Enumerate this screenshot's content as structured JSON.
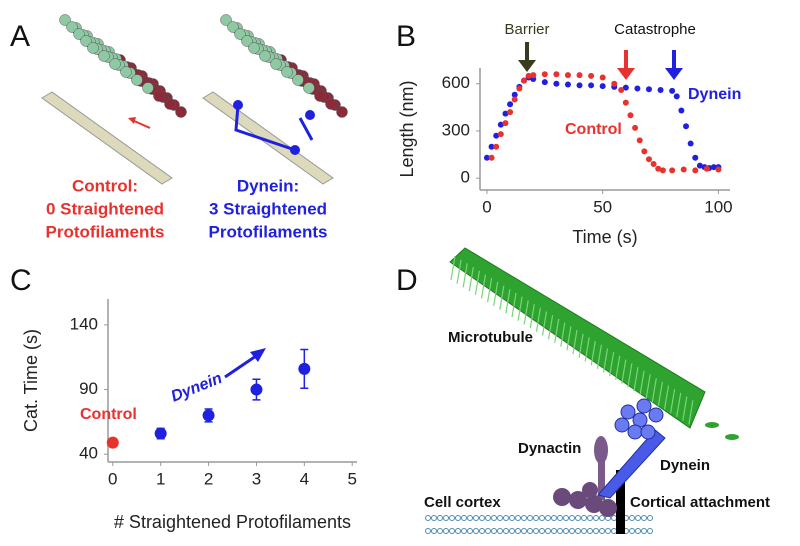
{
  "panel_labels": [
    "A",
    "B",
    "C",
    "D"
  ],
  "panel_a": {
    "control_label": [
      "Control:",
      "0 Straightened",
      "Protofilaments"
    ],
    "dynein_label": [
      "Dynein:",
      "3 Straightened",
      "Protofilaments"
    ]
  },
  "panel_d": {
    "labels": [
      "Microtubule",
      "Dynactin",
      "Dynein",
      "Cell cortex",
      "Cortical attachment"
    ]
  },
  "chart_data": [
    {
      "type": "scatter",
      "x_label": "Time (s)",
      "y_label": "Length (nm)",
      "annotations": [
        "Barrier",
        "Catastrophe"
      ],
      "xlim": [
        -3,
        105
      ],
      "ylim": [
        -75,
        700
      ],
      "xticks": [
        0,
        50,
        100
      ],
      "yticks": [
        0,
        300,
        600
      ],
      "series": [
        {
          "name": "Dynein",
          "color": "#2020e0",
          "x": [
            0,
            2,
            4,
            6,
            8,
            10,
            12,
            14,
            16,
            18,
            20,
            25,
            30,
            35,
            40,
            45,
            50,
            55,
            60,
            65,
            70,
            75,
            80,
            82,
            84,
            86,
            88,
            90,
            92,
            94,
            96,
            98,
            100
          ],
          "values": [
            130,
            200,
            270,
            340,
            410,
            470,
            530,
            580,
            620,
            640,
            630,
            610,
            600,
            595,
            590,
            590,
            585,
            580,
            575,
            570,
            565,
            560,
            555,
            520,
            430,
            330,
            220,
            130,
            80,
            70,
            65,
            70,
            70
          ]
        },
        {
          "name": "Control",
          "color": "#e8322e",
          "x": [
            2,
            4,
            6,
            8,
            10,
            12,
            14,
            16,
            18,
            20,
            25,
            30,
            35,
            40,
            45,
            50,
            55,
            58,
            60,
            62,
            64,
            66,
            68,
            70,
            72,
            74,
            76,
            80,
            85,
            90,
            95,
            100
          ],
          "values": [
            130,
            200,
            280,
            350,
            420,
            500,
            570,
            620,
            650,
            655,
            660,
            660,
            655,
            655,
            650,
            640,
            600,
            560,
            480,
            400,
            320,
            240,
            170,
            120,
            90,
            60,
            50,
            50,
            55,
            50,
            60,
            55
          ]
        }
      ]
    },
    {
      "type": "errorbar",
      "x_label": "# Straightened Protofilaments",
      "y_label": "Cat. Time (s)",
      "xlim": [
        -0.1,
        5.1
      ],
      "ylim": [
        34,
        160
      ],
      "xticks": [
        0,
        1,
        2,
        3,
        4,
        5
      ],
      "yticks": [
        40,
        90,
        140
      ],
      "series": [
        {
          "name": "Control",
          "color": "#e8322e",
          "x": [
            0
          ],
          "values": [
            49
          ],
          "errors": [
            2
          ]
        },
        {
          "name": "Dynein",
          "color": "#2020e0",
          "x": [
            1,
            2,
            3,
            4
          ],
          "values": [
            56,
            70,
            90,
            106
          ],
          "errors": [
            4,
            5,
            8,
            15
          ]
        }
      ]
    }
  ]
}
